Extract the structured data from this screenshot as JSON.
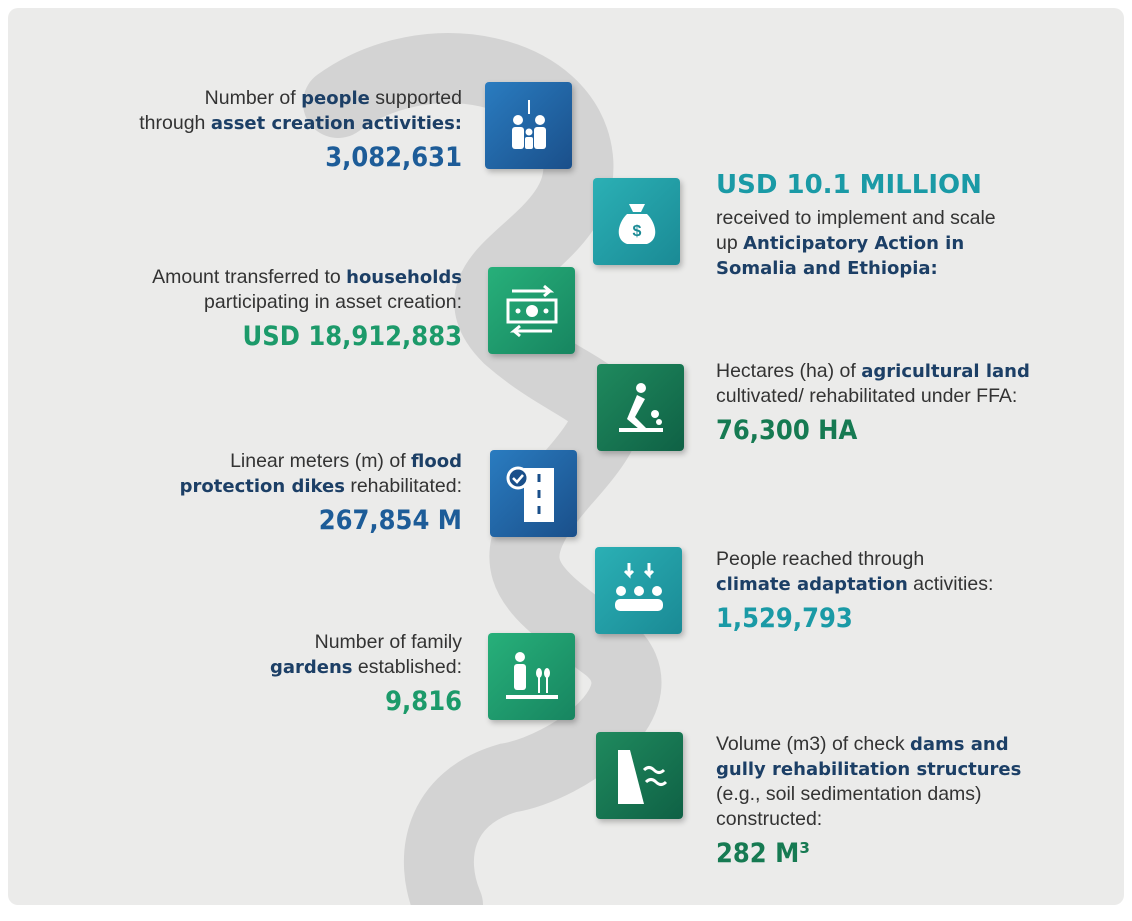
{
  "items": [
    {
      "side": "left",
      "lines": [
        [
          {
            "text": "Number of "
          },
          {
            "text": "people",
            "bold": true
          },
          {
            "text": " supported"
          }
        ],
        [
          {
            "text": "through "
          },
          {
            "text": "asset creation activities:",
            "bold": true
          }
        ]
      ],
      "value": "3,082,631",
      "color": "#1d5c98"
    },
    {
      "side": "left",
      "lines": [
        [
          {
            "text": "Amount transferred to "
          },
          {
            "text": "households",
            "bold": true
          }
        ],
        [
          {
            "text": "participating in asset creation:"
          }
        ]
      ],
      "value": "USD 18,912,883",
      "color": "#1c9a6a"
    },
    {
      "side": "left",
      "lines": [
        [
          {
            "text": "Linear meters (m) of "
          },
          {
            "text": "flood",
            "bold": true
          }
        ],
        [
          {
            "text": "protection dikes",
            "bold": true
          },
          {
            "text": " rehabilitated:"
          }
        ]
      ],
      "value": "267,854 M",
      "color": "#1d5c98"
    },
    {
      "side": "left",
      "lines": [
        [
          {
            "text": "Number of family"
          }
        ],
        [
          {
            "text": "gardens",
            "bold": true
          },
          {
            "text": " established:"
          }
        ]
      ],
      "value": "9,816",
      "color": "#1c9a6a"
    },
    {
      "side": "right",
      "heading": "USD 10.1 MILLION",
      "lines": [
        [
          {
            "text": "received to implement and scale"
          }
        ],
        [
          {
            "text": "up "
          },
          {
            "text": "Anticipatory Action in",
            "bold": true
          }
        ],
        [
          {
            "text": "Somalia and Ethiopia:",
            "bold": true
          }
        ]
      ],
      "color": "#1a9aa6"
    },
    {
      "side": "right",
      "lines": [
        [
          {
            "text": "Hectares (ha) of "
          },
          {
            "text": "agricultural land",
            "bold": true
          }
        ],
        [
          {
            "text": "cultivated/ rehabilitated under FFA:"
          }
        ]
      ],
      "value": "76,300 HA",
      "color": "#167a52"
    },
    {
      "side": "right",
      "lines": [
        [
          {
            "text": "People reached through"
          }
        ],
        [
          {
            "text": "climate adaptation",
            "bold": true
          },
          {
            "text": " activities:"
          }
        ]
      ],
      "value": "1,529,793",
      "color": "#1a9aa6"
    },
    {
      "side": "right",
      "lines": [
        [
          {
            "text": "Volume (m3) of check "
          },
          {
            "text": "dams and",
            "bold": true
          }
        ],
        [
          {
            "text": "gully rehabilitation structures",
            "bold": true
          }
        ],
        [
          {
            "text": "(e.g., soil sedimentation dams)"
          }
        ],
        [
          {
            "text": "constructed:"
          }
        ]
      ],
      "value": "282 M³",
      "color": "#167a52"
    }
  ]
}
